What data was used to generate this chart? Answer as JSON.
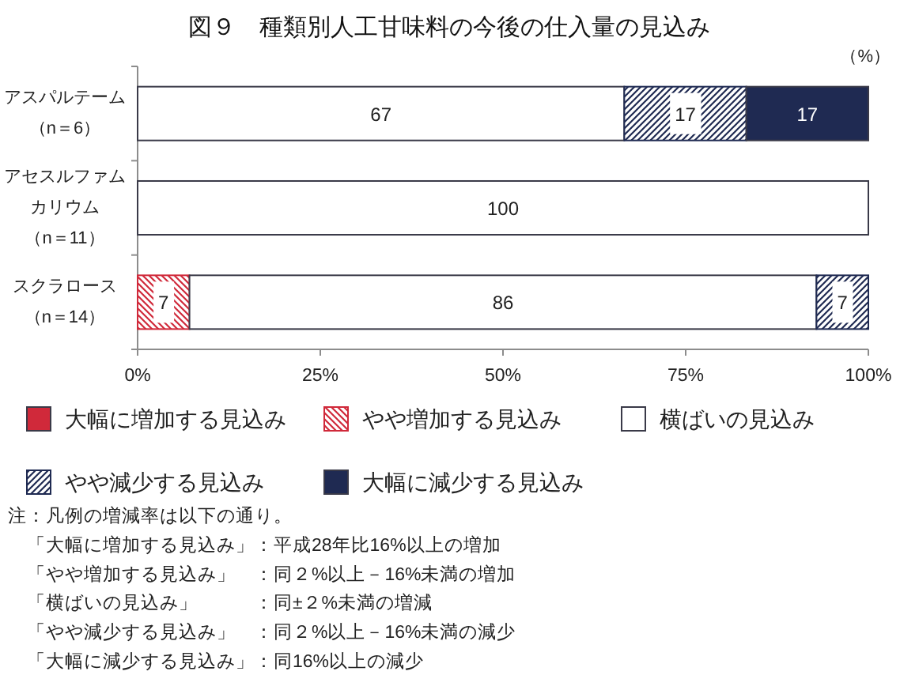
{
  "chart_data": {
    "type": "bar",
    "orientation": "horizontal",
    "stacked": true,
    "title": "図９　種類別人工甘味料の今後の仕入量の見込み",
    "xlabel": "（%）",
    "categories": [
      "アスパルテーム（n＝6）",
      "アセスルファムカリウム（n＝11）",
      "スクラロース（n＝14）"
    ],
    "series": [
      {
        "name": "大幅に増加する見込み",
        "color": "#d0293a",
        "values": [
          null,
          null,
          null
        ]
      },
      {
        "name": "やや増加する見込み",
        "color": "#d0293a",
        "values": [
          null,
          null,
          7.1
        ],
        "value_labels": [
          null,
          null,
          "7"
        ]
      },
      {
        "name": "横ばいの見込み",
        "color": "#ffffff",
        "values": [
          66.6,
          100,
          85.8
        ],
        "value_labels": [
          "67",
          "100",
          "86"
        ]
      },
      {
        "name": "やや減少する見込み",
        "color": "#1f2a52",
        "values": [
          16.7,
          null,
          7.1
        ],
        "value_labels": [
          "17",
          null,
          "7"
        ]
      },
      {
        "name": "大幅に減少する見込み",
        "color": "#1f2a52",
        "values": [
          16.7,
          null,
          null
        ],
        "value_labels": [
          "17",
          null,
          null
        ]
      }
    ],
    "xlim": [
      0,
      100
    ],
    "xticks": [
      {
        "value": 0,
        "label": "0%"
      },
      {
        "value": 25,
        "label": "25%"
      },
      {
        "value": 50,
        "label": "50%"
      },
      {
        "value": 75,
        "label": "75%"
      },
      {
        "value": 100,
        "label": "100%"
      }
    ],
    "legend": "bottom",
    "annotations": [
      "注：凡例の増減率は以下の通り。",
      "　「大幅に増加する見込み」：平成28年比16%以上の増加",
      "　「やや増加する見込み」　：同２%以上－16%未満の増加",
      "　「横ばいの見込み」　　　：同±２%未満の増減",
      "　「やや減少する見込み」　：同２%以上－16%未満の減少",
      "　「大幅に減少する見込み」：同16%以上の減少"
    ]
  }
}
